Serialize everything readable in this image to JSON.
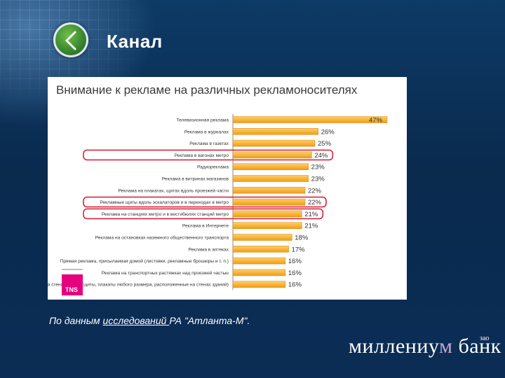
{
  "slide": {
    "title": "Канал",
    "footnote_prefix": "По данным ",
    "footnote_link": "исследований ",
    "footnote_suffix": "РА \"Атланта-М\"."
  },
  "brand": {
    "name_part1": "миллениу",
    "name_part2": "м",
    "name_part3": " банк",
    "superscript": "зао"
  },
  "badge": {
    "label": "TNS",
    "color": "#e6007e"
  },
  "colors": {
    "bar": "#f39c12",
    "bar_top": "#fbd06a",
    "highlight": "#d6283c",
    "background": "#0a2d52"
  },
  "chart_data": {
    "type": "bar",
    "orientation": "horizontal",
    "title": "Внимание к рекламе на различных рекламоносителях",
    "categories": [
      "Телевизионная реклама",
      "Реклама в журналах",
      "Реклама в газетах",
      "Реклама в вагонах метро",
      "Радиореклама",
      "Реклама в витринах магазинов",
      "Реклама на плакатах, щитах вдоль проезжей части",
      "Рекламные щиты вдоль эскалаторов и в переходах в метро",
      "Реклама на станциях метро и в вестибюлях станций метро",
      "Реклама в Интернете",
      "Реклама на остановках наземного общественного транспорта",
      "Реклама в аптеках",
      "Прямая реклама, присылаемая домой (листовки, рекламные брошюры и т. п.)",
      "Реклама на транспортных растяжках над проезжей частью",
      "Реклама на стенах домов (щиты, плакаты любого размера, расположенные на стенах зданий)"
    ],
    "values": [
      47,
      26,
      25,
      24,
      23,
      23,
      22,
      22,
      21,
      21,
      18,
      17,
      16,
      16,
      16
    ],
    "value_labels": [
      "47%",
      "26%",
      "25%",
      "24%",
      "23%",
      "23%",
      "22%",
      "22%",
      "21%",
      "21%",
      "18%",
      "17%",
      "16%",
      "16%",
      "16%"
    ],
    "highlighted_indices": [
      3,
      7,
      8
    ],
    "xlim": [
      0,
      47
    ],
    "grid": false,
    "legend": "none"
  }
}
